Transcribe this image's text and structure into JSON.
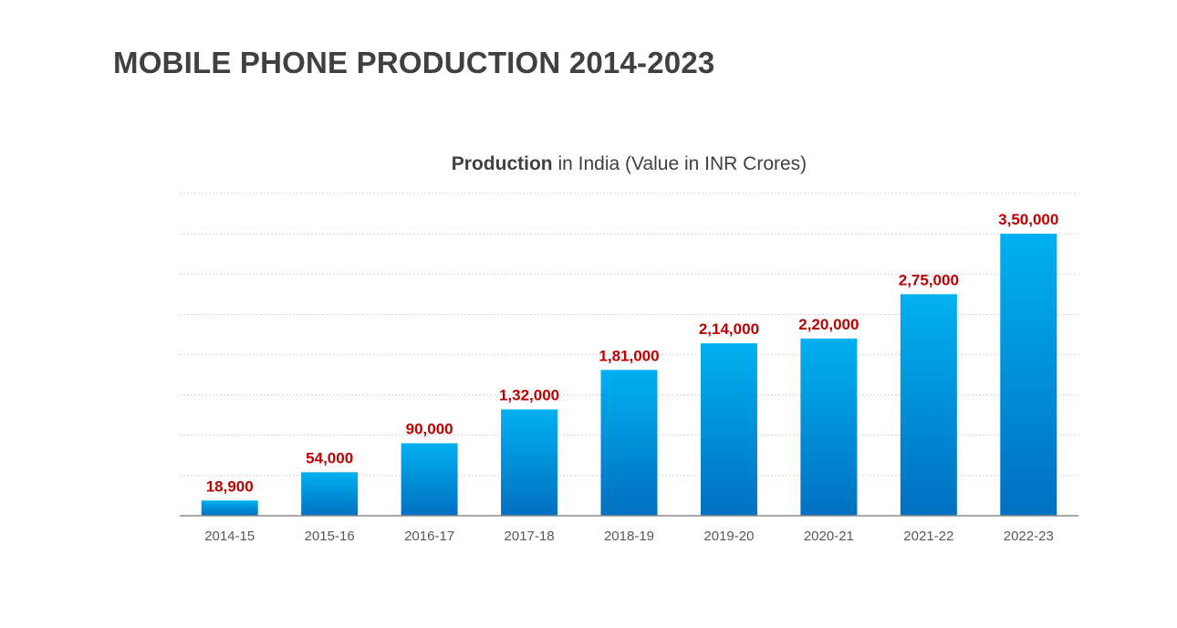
{
  "page": {
    "title": "MOBILE PHONE PRODUCTION 2014-2023"
  },
  "chart_data": {
    "type": "bar",
    "title_bold": "Production",
    "title_rest": " in India (Value in INR Crores)",
    "categories": [
      "2014-15",
      "2015-16",
      "2016-17",
      "2017-18",
      "2018-19",
      "2019-20",
      "2020-21",
      "2021-22",
      "2022-23"
    ],
    "values": [
      18900,
      54000,
      90000,
      132000,
      181000,
      214000,
      220000,
      275000,
      350000
    ],
    "value_labels": [
      "18,900",
      "54,000",
      "90,000",
      "1,32,000",
      "1,81,000",
      "2,14,000",
      "2,20,000",
      "2,75,000",
      "3,50,000"
    ],
    "ylim": [
      0,
      400000
    ],
    "grid": true,
    "legend": "none",
    "colors": {
      "bar_top": "#00b0f0",
      "bar_bottom": "#0070c0",
      "data_label": "#c00000",
      "title": "#404040"
    }
  }
}
